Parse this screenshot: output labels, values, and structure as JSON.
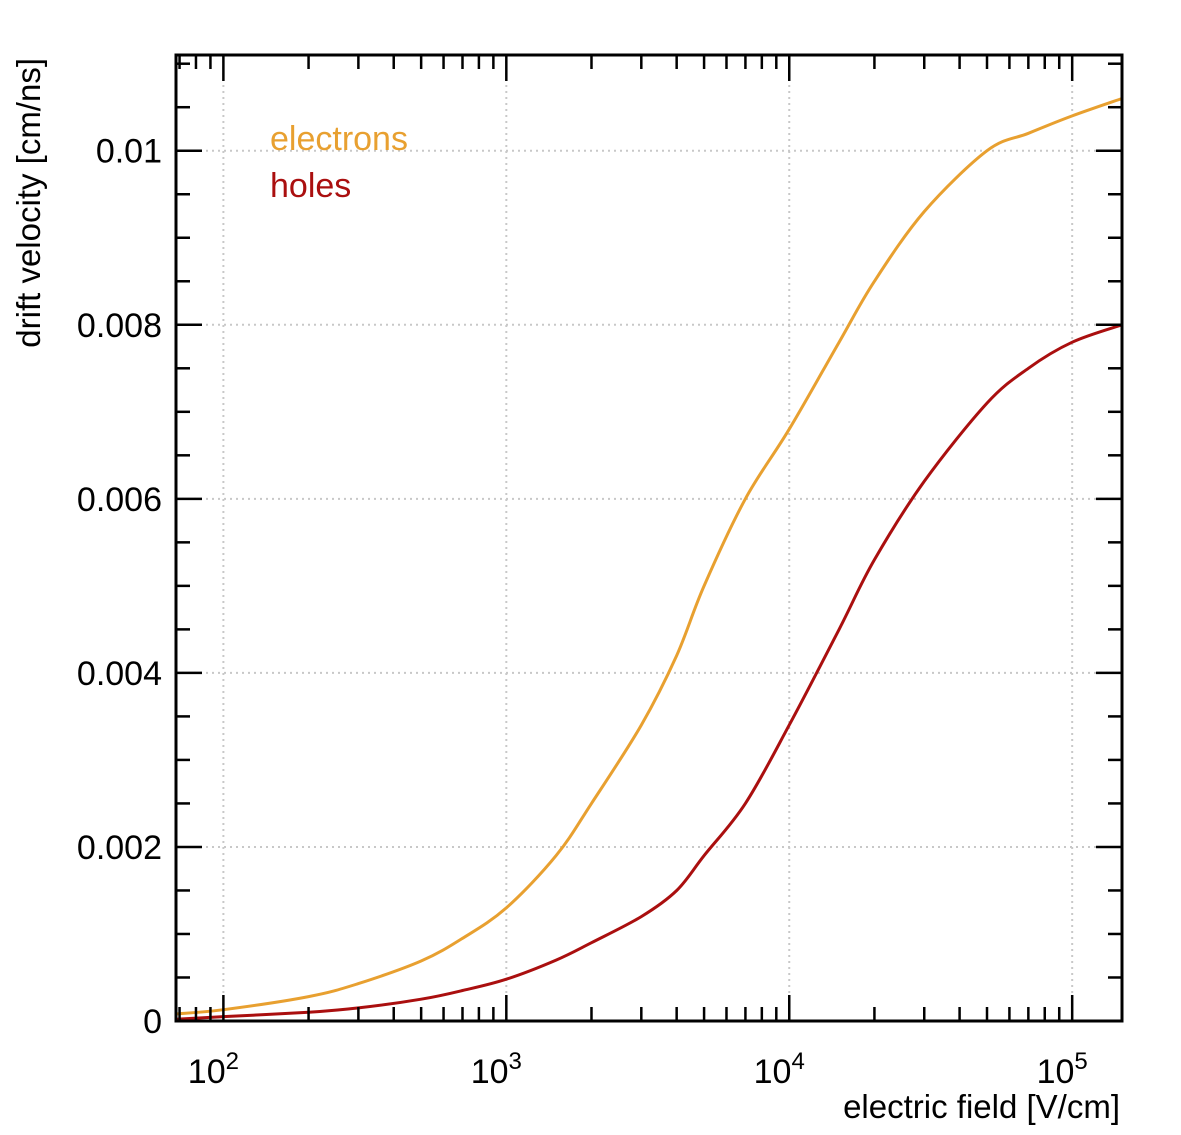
{
  "chart_data": {
    "type": "line",
    "title": "",
    "xlabel": "electric field [V/cm]",
    "ylabel": "drift velocity [cm/ns]",
    "xscale": "log",
    "xlim": [
      68,
      150000
    ],
    "ylim": [
      0,
      0.0111
    ],
    "grid": true,
    "legend_position": "top-left",
    "x_ticks": [
      {
        "value": 100,
        "base": "10",
        "exp": "2"
      },
      {
        "value": 1000,
        "base": "10",
        "exp": "3"
      },
      {
        "value": 10000,
        "base": "10",
        "exp": "4"
      },
      {
        "value": 100000,
        "base": "10",
        "exp": "5"
      }
    ],
    "y_ticks": [
      {
        "value": 0,
        "label": "0"
      },
      {
        "value": 0.002,
        "label": "0.002"
      },
      {
        "value": 0.004,
        "label": "0.004"
      },
      {
        "value": 0.006,
        "label": "0.006"
      },
      {
        "value": 0.008,
        "label": "0.008"
      },
      {
        "value": 0.01,
        "label": "0.01"
      }
    ],
    "series": [
      {
        "name": "electrons",
        "color": "#e8a030",
        "x": [
          68,
          100,
          200,
          300,
          500,
          700,
          1000,
          1500,
          2000,
          3000,
          4000,
          5000,
          7000,
          10000,
          15000,
          20000,
          30000,
          50000,
          70000,
          100000,
          150000
        ],
        "y": [
          8e-05,
          0.00013,
          0.00028,
          0.00043,
          0.00069,
          0.00095,
          0.0013,
          0.0019,
          0.0025,
          0.0034,
          0.0042,
          0.005,
          0.006,
          0.0068,
          0.0078,
          0.0085,
          0.0093,
          0.01,
          0.0102,
          0.0104,
          0.0106
        ]
      },
      {
        "name": "holes",
        "color": "#aa0f0f",
        "x": [
          68,
          100,
          200,
          300,
          500,
          700,
          1000,
          1500,
          2000,
          3000,
          4000,
          5000,
          7000,
          10000,
          15000,
          20000,
          30000,
          50000,
          70000,
          100000,
          150000
        ],
        "y": [
          2e-05,
          5e-05,
          0.0001,
          0.00015,
          0.00025,
          0.00035,
          0.00048,
          0.0007,
          0.0009,
          0.0012,
          0.0015,
          0.0019,
          0.0025,
          0.0034,
          0.0045,
          0.0053,
          0.0062,
          0.0071,
          0.0075,
          0.0078,
          0.008
        ]
      }
    ]
  }
}
